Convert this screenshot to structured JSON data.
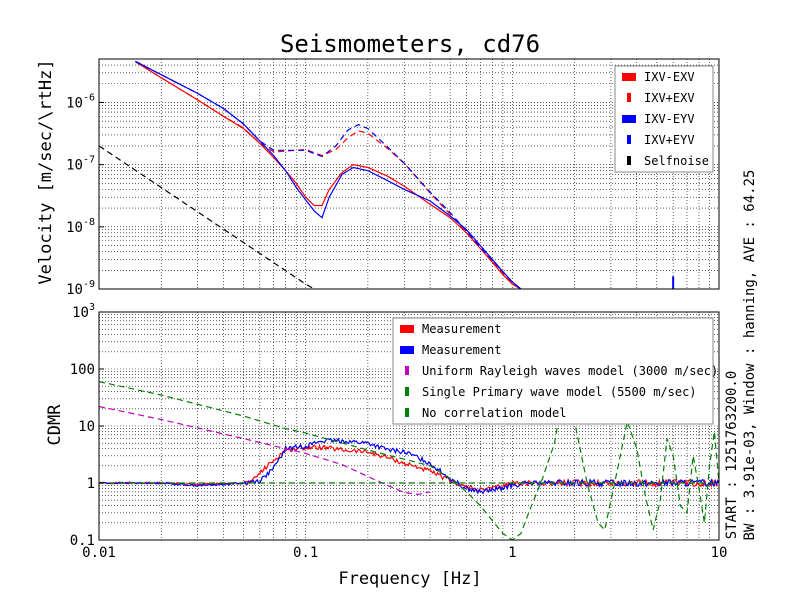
{
  "figure": {
    "title": "Seismometers, cd76",
    "side_info_1": "START : 1251763200.0",
    "side_info_2": "BW : 3.91e-03, Window : hanning, AVE : 64.25"
  },
  "chart_data": [
    {
      "type": "line",
      "ylabel": "Velocity [m/sec/\\rtHz]",
      "xlabel": "",
      "xscale": "log",
      "yscale": "log",
      "xlim": [
        0.01,
        10
      ],
      "ylim": [
        1e-09,
        5e-06
      ],
      "x_ticks": [
        0.01,
        0.1,
        1,
        10
      ],
      "y_tick_labels": [
        {
          "v": 1e-06,
          "m": "10",
          "e": "-6"
        },
        {
          "v": 1e-07,
          "m": "10",
          "e": "-7"
        },
        {
          "v": 1e-08,
          "m": "10",
          "e": "-8"
        },
        {
          "v": 1e-09,
          "m": "10",
          "e": "-9"
        }
      ],
      "grid": true,
      "legend_position": "top-right",
      "series": [
        {
          "name": "IXV-EXV",
          "color": "#ff0000",
          "style": "solid",
          "x": [
            0.015,
            0.02,
            0.03,
            0.04,
            0.05,
            0.06,
            0.07,
            0.08,
            0.09,
            0.1,
            0.11,
            0.12,
            0.13,
            0.15,
            0.17,
            0.2,
            0.25,
            0.3,
            0.4,
            0.5,
            0.6,
            0.7,
            0.8,
            0.9,
            1.0,
            1.1
          ],
          "y": [
            4.5e-06,
            2.5e-06,
            1.1e-06,
            6e-07,
            3.8e-07,
            2.2e-07,
            1.3e-07,
            8e-08,
            5e-08,
            3e-08,
            2.2e-08,
            2.2e-08,
            4e-08,
            7.5e-08,
            1e-07,
            9e-08,
            6.5e-08,
            4.5e-08,
            2.3e-08,
            1.4e-08,
            8e-09,
            4.5e-09,
            2.7e-09,
            1.7e-09,
            1.2e-09,
            1e-09
          ]
        },
        {
          "name": "IXV+EXV",
          "color": "#ff0000",
          "style": "dashed",
          "x": [
            0.015,
            0.02,
            0.03,
            0.04,
            0.05,
            0.06,
            0.07,
            0.08,
            0.1,
            0.12,
            0.14,
            0.16,
            0.18,
            0.2,
            0.25,
            0.3,
            0.4,
            0.5,
            0.6,
            0.7,
            0.8,
            0.9,
            1.0,
            1.1
          ],
          "y": [
            4.5e-06,
            2.5e-06,
            1.1e-06,
            6e-07,
            3.9e-07,
            2.2e-07,
            1.6e-07,
            1.65e-07,
            1.75e-07,
            1.4e-07,
            1.75e-07,
            2.7e-07,
            3.5e-07,
            3.2e-07,
            1.8e-07,
            1.05e-07,
            3.5e-08,
            1.6e-08,
            8e-09,
            4.5e-09,
            2.8e-09,
            1.8e-09,
            1.2e-09,
            1e-09
          ]
        },
        {
          "name": "IXV-EYV",
          "color": "#0000ff",
          "style": "solid",
          "x": [
            0.015,
            0.02,
            0.03,
            0.04,
            0.05,
            0.06,
            0.07,
            0.08,
            0.09,
            0.1,
            0.11,
            0.12,
            0.13,
            0.15,
            0.17,
            0.2,
            0.25,
            0.3,
            0.4,
            0.5,
            0.6,
            0.7,
            0.8,
            0.9,
            1.0,
            1.1
          ],
          "y": [
            4.6e-06,
            2.8e-06,
            1.4e-06,
            8e-07,
            4.5e-07,
            2.4e-07,
            1.4e-07,
            8e-08,
            4.3e-08,
            2.7e-08,
            1.8e-08,
            1.4e-08,
            3e-08,
            7e-08,
            9e-08,
            8e-08,
            5.5e-08,
            4e-08,
            2.6e-08,
            1.5e-08,
            9e-09,
            5e-09,
            3e-09,
            1.9e-09,
            1.3e-09,
            1e-09
          ]
        },
        {
          "name": "IXV+EYV",
          "color": "#0000ff",
          "style": "dashed",
          "x": [
            0.015,
            0.02,
            0.03,
            0.04,
            0.05,
            0.06,
            0.07,
            0.08,
            0.1,
            0.12,
            0.14,
            0.16,
            0.18,
            0.2,
            0.25,
            0.3,
            0.4,
            0.5,
            0.6,
            0.7,
            0.8,
            0.9,
            1.0,
            1.1
          ],
          "y": [
            4.6e-06,
            2.8e-06,
            1.4e-06,
            8e-07,
            4.5e-07,
            2.4e-07,
            1.7e-07,
            1.7e-07,
            1.7e-07,
            1.35e-07,
            2e-07,
            3.6e-07,
            4.4e-07,
            3.8e-07,
            1.9e-07,
            1.05e-07,
            3.6e-08,
            1.7e-08,
            8.5e-09,
            4.7e-09,
            2.9e-09,
            1.9e-09,
            1.3e-09,
            1e-09
          ]
        },
        {
          "name": "Selfnoise",
          "color": "#000000",
          "style": "dashed",
          "x": [
            0.01,
            0.1,
            0.11
          ],
          "y": [
            2e-07,
            1.2e-09,
            1e-09
          ]
        }
      ],
      "annotations": [
        {
          "type": "blue-spike",
          "x": 6.0,
          "y_bottom": 1e-09,
          "y_top": 1.6e-09
        }
      ]
    },
    {
      "type": "line",
      "ylabel": "CDMR",
      "xlabel": "Frequency [Hz]",
      "xscale": "log",
      "yscale": "log",
      "xlim": [
        0.01,
        10
      ],
      "ylim": [
        0.1,
        1000
      ],
      "x_ticks": [
        0.01,
        0.1,
        1,
        10
      ],
      "x_tick_labels": [
        "0.01",
        "0.1",
        "1",
        "10"
      ],
      "y_tick_labels": [
        {
          "v": 1000,
          "m": "10",
          "e": "3"
        },
        {
          "v": 100,
          "m": "100",
          "e": ""
        },
        {
          "v": 10,
          "m": "10",
          "e": ""
        },
        {
          "v": 1,
          "m": "1",
          "e": ""
        },
        {
          "v": 0.1,
          "m": "0.1",
          "e": ""
        }
      ],
      "grid": true,
      "legend_position": "top-right",
      "series": [
        {
          "name": "Measurement",
          "color": "#ff0000",
          "style": "solid",
          "noisy": true,
          "x": [
            0.01,
            0.02,
            0.03,
            0.04,
            0.05,
            0.055,
            0.06,
            0.07,
            0.08,
            0.1,
            0.12,
            0.15,
            0.2,
            0.25,
            0.3,
            0.35,
            0.4,
            0.5,
            0.6,
            0.7,
            0.8,
            1.0,
            1.2,
            1.5,
            2,
            3,
            5,
            7,
            10
          ],
          "y": [
            1,
            1,
            0.95,
            0.97,
            1,
            1.05,
            1.5,
            2.5,
            3.8,
            4.2,
            4.2,
            3.8,
            3.5,
            2.8,
            2.2,
            1.9,
            1.6,
            1.1,
            0.85,
            0.75,
            0.8,
            1,
            1,
            1,
            1,
            1,
            1,
            1,
            1
          ]
        },
        {
          "name": "Measurement",
          "color": "#0000ff",
          "style": "solid",
          "noisy": true,
          "x": [
            0.01,
            0.02,
            0.03,
            0.04,
            0.05,
            0.06,
            0.07,
            0.08,
            0.1,
            0.12,
            0.15,
            0.2,
            0.25,
            0.3,
            0.35,
            0.4,
            0.5,
            0.6,
            0.7,
            0.8,
            1.0,
            1.2,
            1.5,
            2,
            3,
            5,
            7,
            10
          ],
          "y": [
            1,
            1,
            0.9,
            0.95,
            1,
            1.1,
            1.8,
            4,
            4.5,
            5.5,
            5.5,
            5,
            3.8,
            3.5,
            2.8,
            2.2,
            1.2,
            0.8,
            0.7,
            0.75,
            0.9,
            1,
            1,
            1,
            1,
            1,
            1,
            1
          ]
        },
        {
          "name": "Uniform Rayleigh waves model (3000 m/sec)",
          "color": "#c000c0",
          "style": "dashed",
          "x": [
            0.01,
            0.02,
            0.05,
            0.08,
            0.1,
            0.15,
            0.2,
            0.25,
            0.3,
            0.35,
            0.4
          ],
          "y": [
            22,
            13,
            6,
            4,
            3.3,
            2.1,
            1.3,
            0.9,
            0.68,
            0.63,
            0.7
          ]
        },
        {
          "name": "Single Primary wave model (5500 m/sec)",
          "color": "#008000",
          "style": "dashed",
          "x": [
            0.01,
            0.02,
            0.05,
            0.08,
            0.1,
            0.2,
            0.4,
            0.5,
            0.6,
            0.7,
            0.8,
            0.9,
            1.0,
            1.1,
            1.2,
            1.4,
            1.6,
            1.8,
            2.0,
            2.3,
            2.6,
            2.8,
            3.2,
            3.6,
            4.0,
            4.4,
            4.8,
            5.2,
            5.6,
            6.0,
            6.5,
            7.0,
            7.5,
            8.0,
            8.5,
            9.0,
            9.5,
            10
          ],
          "y": [
            60,
            35,
            15,
            9,
            7.5,
            3.8,
            2,
            1.2,
            0.7,
            0.4,
            0.22,
            0.13,
            0.1,
            0.13,
            0.3,
            1.2,
            5,
            60,
            12,
            1,
            0.2,
            0.15,
            1.5,
            12,
            4,
            0.6,
            0.15,
            0.5,
            6,
            3,
            0.4,
            0.3,
            3,
            0.8,
            0.2,
            2,
            8,
            1
          ]
        },
        {
          "name": "No correlation model",
          "color": "#008000",
          "style": "dashed",
          "x": [
            0.01,
            10
          ],
          "y": [
            1,
            1
          ]
        }
      ]
    }
  ]
}
